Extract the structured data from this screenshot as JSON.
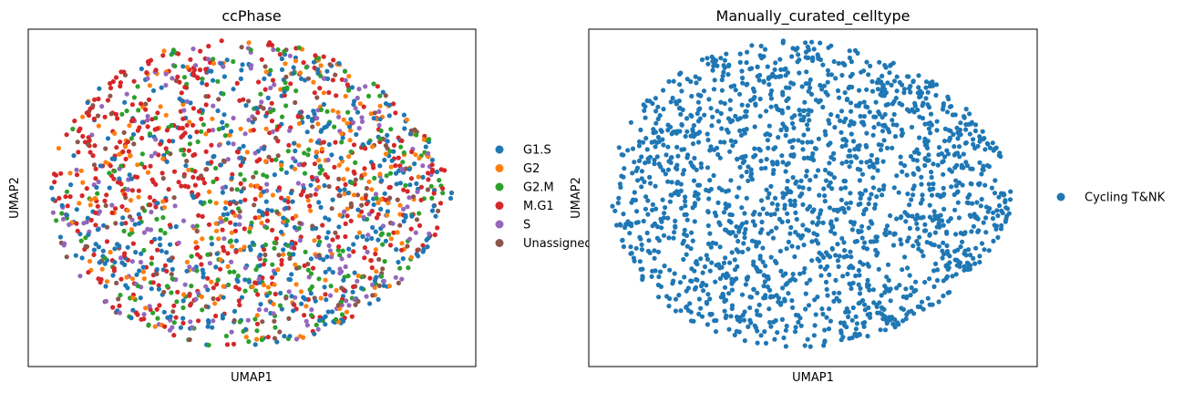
{
  "chart_data": [
    {
      "type": "scatter",
      "title": "ccPhase",
      "xlabel": "UMAP1",
      "ylabel": "UMAP2",
      "xticks": [],
      "yticks": [],
      "legend_placement": "right",
      "n_points_approx": 1800,
      "series": [
        {
          "name": "G1.S",
          "color": "#1f77b4",
          "share": 0.27
        },
        {
          "name": "G2",
          "color": "#ff7f0e",
          "share": 0.14
        },
        {
          "name": "G2.M",
          "color": "#2ca02c",
          "share": 0.15
        },
        {
          "name": "M.G1",
          "color": "#d62728",
          "share": 0.22
        },
        {
          "name": "S",
          "color": "#9467bd",
          "share": 0.13
        },
        {
          "name": "Unassigned",
          "color": "#8c564b",
          "share": 0.09
        }
      ]
    },
    {
      "type": "scatter",
      "title": "Manually_curated_celltype",
      "xlabel": "UMAP1",
      "ylabel": "UMAP2",
      "xticks": [],
      "yticks": [],
      "legend_placement": "right",
      "n_points_approx": 1800,
      "series": [
        {
          "name": "Cycling T&NK",
          "color": "#1f77b4",
          "share": 1.0
        }
      ]
    }
  ]
}
